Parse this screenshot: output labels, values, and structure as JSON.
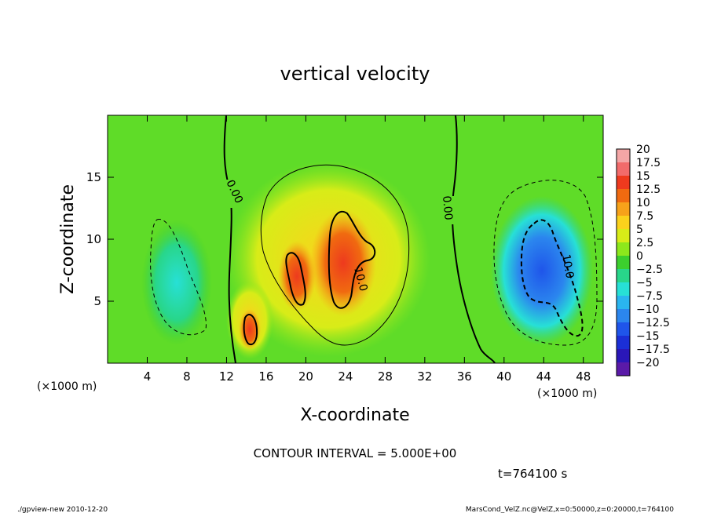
{
  "chart_data": {
    "type": "heatmap",
    "title": "vertical velocity",
    "xlabel": "X-coordinate",
    "ylabel": "Z-coordinate",
    "x_unit": "(×1000 m)",
    "y_unit": "(×1000 m)",
    "xlim": [
      0,
      50
    ],
    "ylim": [
      0,
      20
    ],
    "xticks": [
      4,
      8,
      12,
      16,
      20,
      24,
      28,
      32,
      36,
      40,
      44,
      48
    ],
    "yticks": [
      5,
      10,
      15
    ],
    "colorbar": {
      "levels": [
        "20",
        "17.5",
        "15",
        "12.5",
        "10",
        "7.5",
        "5",
        "2.5",
        "0",
        "-2.5",
        "-5",
        "-7.5",
        "-10",
        "-12.5",
        "-15",
        "-17.5",
        "-20"
      ],
      "colors": [
        "#f4a6a6",
        "#f26b6b",
        "#ee3a1e",
        "#f06a10",
        "#f7a21a",
        "#fbd21c",
        "#d8ec18",
        "#8de81c",
        "#3ccf2e",
        "#28d68a",
        "#27e0d6",
        "#2ab5f0",
        "#2b86ee",
        "#1f55ea",
        "#1b2fd6",
        "#2a17b8",
        "#5a1aa8"
      ]
    },
    "contour_interval": "5.000E+00",
    "contour_labels": [
      "0.00",
      "0.00",
      "10.0",
      "10.0"
    ],
    "features": [
      {
        "name": "updraft-core",
        "x": 23,
        "z": 7.5,
        "value": 15
      },
      {
        "name": "updraft-secondary",
        "x": 19,
        "z": 7,
        "value": 12.5
      },
      {
        "name": "updraft-low",
        "x": 14.5,
        "z": 3,
        "value": 12
      },
      {
        "name": "downdraft-core",
        "x": 44,
        "z": 7,
        "value": -12.5
      },
      {
        "name": "downdraft-weak",
        "x": 7,
        "z": 6,
        "value": -5
      }
    ]
  },
  "annotations": {
    "contour_interval_text": "CONTOUR INTERVAL = 5.000E+00",
    "time_text": "t=764100 s",
    "footer_left": "./gpview-new  2010-12-20",
    "footer_right": "MarsCond_VelZ.nc@VelZ,x=0:50000,z=0:20000,t=764100"
  }
}
